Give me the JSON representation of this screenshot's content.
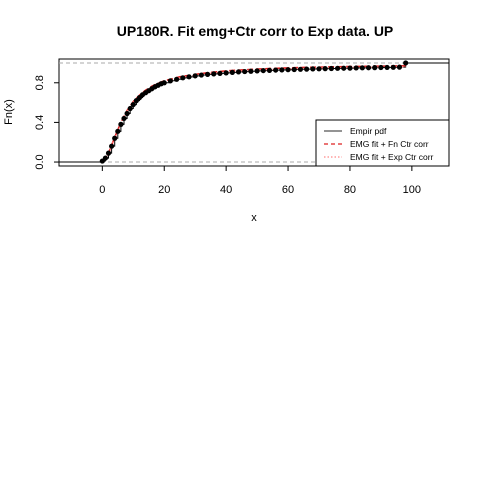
{
  "chart_data": {
    "type": "line",
    "title": "UP180R. Fit emg+Ctr corr to Exp data. UP",
    "xlabel": "x",
    "ylabel": "Fn(x)",
    "xlim": [
      -14,
      112
    ],
    "ylim": [
      -0.04,
      1.04
    ],
    "xticks": [
      0,
      20,
      40,
      60,
      80,
      100
    ],
    "yticks": [
      0.0,
      0.4,
      0.8
    ],
    "xtick_labels": [
      "0",
      "20",
      "40",
      "60",
      "80",
      "100"
    ],
    "ytick_labels": [
      "0.0",
      "0.4",
      "0.8"
    ],
    "reference_lines_y": [
      0,
      1
    ],
    "grid": false,
    "legend": {
      "position": "bottom-right",
      "entries": [
        {
          "label": "Empir pdf",
          "color": "#555555",
          "style": "solid"
        },
        {
          "label": "EMG fit + Fn Ctr corr",
          "color": "#dd2222",
          "style": "dashed"
        },
        {
          "label": "EMG fit + Exp Ctr corr",
          "color": "#ff8888",
          "style": "dotted"
        }
      ]
    },
    "series": [
      {
        "name": "Empir pdf",
        "color": "#000000",
        "x": [
          0,
          1,
          2,
          3,
          4,
          5,
          6,
          7,
          8,
          9,
          10,
          11,
          12,
          13,
          14,
          15,
          16,
          17,
          18,
          19,
          20,
          22,
          24,
          26,
          28,
          30,
          32,
          34,
          36,
          38,
          40,
          42,
          44,
          46,
          48,
          50,
          52,
          54,
          56,
          58,
          60,
          62,
          64,
          66,
          68,
          70,
          72,
          74,
          76,
          78,
          80,
          82,
          84,
          86,
          88,
          90,
          92,
          94,
          96,
          98
        ],
        "y": [
          0.01,
          0.04,
          0.09,
          0.16,
          0.24,
          0.31,
          0.38,
          0.44,
          0.49,
          0.54,
          0.58,
          0.62,
          0.65,
          0.68,
          0.7,
          0.72,
          0.74,
          0.76,
          0.775,
          0.79,
          0.8,
          0.82,
          0.835,
          0.85,
          0.86,
          0.87,
          0.878,
          0.885,
          0.89,
          0.895,
          0.9,
          0.905,
          0.91,
          0.913,
          0.916,
          0.92,
          0.923,
          0.925,
          0.928,
          0.93,
          0.932,
          0.934,
          0.936,
          0.938,
          0.94,
          0.941,
          0.943,
          0.944,
          0.946,
          0.947,
          0.948,
          0.95,
          0.951,
          0.952,
          0.953,
          0.954,
          0.955,
          0.956,
          0.958,
          1.0
        ]
      },
      {
        "name": "EMG fit + Fn Ctr corr",
        "color": "#dd2222",
        "x": [
          0,
          2,
          4,
          6,
          8,
          10,
          12,
          14,
          16,
          18,
          20,
          25,
          30,
          35,
          40,
          45,
          50,
          55,
          60,
          65,
          70,
          75,
          80,
          85,
          90,
          95,
          98
        ],
        "y": [
          0.01,
          0.09,
          0.25,
          0.4,
          0.52,
          0.61,
          0.675,
          0.725,
          0.765,
          0.795,
          0.82,
          0.86,
          0.885,
          0.905,
          0.92,
          0.93,
          0.938,
          0.945,
          0.95,
          0.955,
          0.958,
          0.961,
          0.964,
          0.966,
          0.968,
          0.97,
          0.971
        ]
      },
      {
        "name": "EMG fit + Exp Ctr corr",
        "color": "#ff8888",
        "x": [
          0,
          2,
          4,
          6,
          8,
          10,
          12,
          14,
          16,
          18,
          20,
          25,
          30,
          35,
          40,
          45,
          50,
          55,
          60,
          65,
          70,
          75,
          80,
          85,
          90,
          95,
          98
        ],
        "y": [
          0.01,
          0.085,
          0.24,
          0.39,
          0.51,
          0.6,
          0.665,
          0.715,
          0.755,
          0.785,
          0.81,
          0.85,
          0.875,
          0.895,
          0.91,
          0.92,
          0.928,
          0.935,
          0.94,
          0.945,
          0.949,
          0.952,
          0.955,
          0.957,
          0.959,
          0.961,
          0.962
        ]
      }
    ]
  }
}
